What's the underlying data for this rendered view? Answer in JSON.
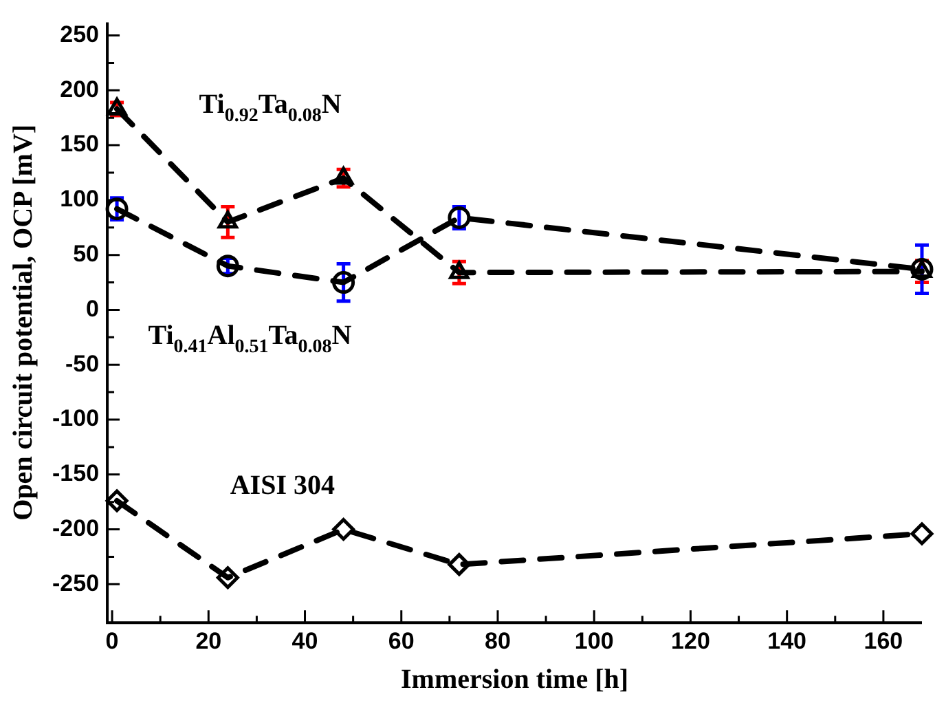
{
  "chart_data": {
    "type": "line",
    "xlabel": "Immersion time [h]",
    "ylabel": "Open circuit potential, OCP [mV]",
    "x": [
      1,
      24,
      48,
      72,
      168
    ],
    "series": [
      {
        "name": "Ti$_{0.92}$Ta$_{0.08}$N",
        "color": "#000000",
        "marker": "triangle",
        "line_style": "dashed",
        "values": [
          183,
          80,
          120,
          34,
          35
        ],
        "errors": [
          6,
          14,
          8,
          10,
          10
        ]
      },
      {
        "name": "Ti$_{0.41}$Al$_{0.51}$Ta$_{0.08}$N",
        "color": "#000000",
        "marker": "circle",
        "line_style": "dashed",
        "values": [
          92,
          40,
          25,
          84,
          37
        ],
        "errors": [
          10,
          7,
          17,
          10,
          22
        ]
      },
      {
        "name": "AISI 304",
        "color": "#000000",
        "marker": "diamond",
        "line_style": "dashed",
        "values": [
          -174,
          -244,
          -200,
          -232,
          -204
        ]
      }
    ],
    "xlim": [
      -1,
      168
    ],
    "xticks": [
      0,
      {
        "value": 10,
        "label": null
      },
      20,
      {
        "value": 30,
        "label": null
      },
      40,
      {
        "value": 50,
        "label": null
      },
      60,
      {
        "value": 70,
        "label": null
      },
      80,
      {
        "value": 90,
        "label": null
      },
      100,
      {
        "value": 110,
        "label": null
      },
      120,
      {
        "value": 130,
        "label": null
      },
      140,
      {
        "value": 150,
        "label": null
      },
      160
    ],
    "ylim": [
      -285,
      262
    ],
    "yticks": [
      -250,
      {
        "value": -225,
        "label": null
      },
      -200,
      {
        "value": -175,
        "label": null
      },
      -150,
      {
        "value": -125,
        "label": null
      },
      -100,
      {
        "value": -75,
        "label": null
      },
      -50,
      {
        "value": -25,
        "label": null
      },
      0,
      {
        "value": 25,
        "label": null
      },
      50,
      {
        "value": 75,
        "label": null
      },
      100,
      {
        "value": 125,
        "label": null
      },
      150,
      {
        "value": 175,
        "label": null
      },
      200,
      {
        "value": 225,
        "label": null
      },
      250
    ],
    "grid": false,
    "legend": false
  }
}
